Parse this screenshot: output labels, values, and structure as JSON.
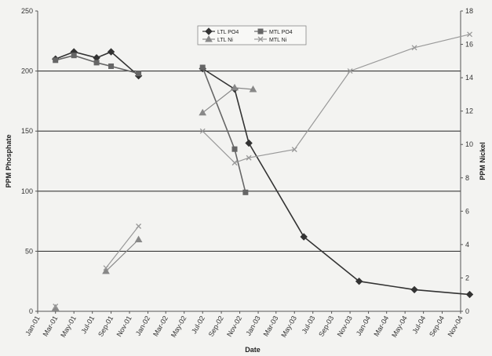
{
  "chart_data": {
    "type": "line",
    "title": "",
    "xlabel": "Date",
    "ylabel": "PPM Phosphate",
    "y2label": "PPM Nickel",
    "ylim": [
      0,
      250
    ],
    "y2lim": [
      0,
      18
    ],
    "yticks": [
      "0",
      "50",
      "100",
      "150",
      "200",
      "250"
    ],
    "y2ticks": [
      "0",
      "2",
      "4",
      "6",
      "8",
      "10",
      "12",
      "14",
      "16",
      "18"
    ],
    "x_ticks": [
      "Jan-01",
      "Mar-01",
      "May-01",
      "Jul-01",
      "Sep-01",
      "Nov-01",
      "Jan-02",
      "Mar-02",
      "May-02",
      "Jul-02",
      "Sep-02",
      "Nov-02",
      "Jan-03",
      "Mar-03",
      "May-03",
      "Jul-03",
      "Sep-03",
      "Nov-03",
      "Jan-04",
      "Mar-04",
      "May-04",
      "Jul-04",
      "Sep-04",
      "Nov-04"
    ],
    "grid": "horizontal at 50, 100, 150, 200",
    "legend_position": "top-center",
    "series": [
      {
        "name": "LTL PO4",
        "axis": "left",
        "color": "#333333",
        "marker": "diamond",
        "segments": [
          [
            [
              "2001-03-01",
              210
            ],
            [
              "2001-05-01",
              216
            ],
            [
              "2001-07-15",
              211
            ],
            [
              "2001-09-01",
              216
            ],
            [
              "2001-12-01",
              196
            ]
          ],
          [
            [
              "2002-07-01",
              202
            ],
            [
              "2002-10-15",
              185
            ],
            [
              "2002-12-01",
              140
            ],
            [
              "2003-06-01",
              62
            ],
            [
              "2003-12-01",
              25
            ],
            [
              "2004-06-01",
              18
            ],
            [
              "2004-12-01",
              14
            ]
          ]
        ]
      },
      {
        "name": "MTL PO4",
        "axis": "left",
        "color": "#666666",
        "marker": "square",
        "segments": [
          [
            [
              "2001-03-01",
              209
            ],
            [
              "2001-05-01",
              213
            ],
            [
              "2001-07-15",
              207
            ],
            [
              "2001-09-01",
              204
            ],
            [
              "2001-12-01",
              198
            ]
          ],
          [
            [
              "2002-07-01",
              203
            ],
            [
              "2002-10-15",
              135
            ],
            [
              "2002-11-20",
              99
            ]
          ]
        ]
      },
      {
        "name": "LTL Ni",
        "axis": "right",
        "color": "#888888",
        "marker": "triangle",
        "segments": [
          [
            [
              "2001-03-01",
              0.2
            ]
          ],
          [
            [
              "2001-08-15",
              2.4
            ],
            [
              "2001-12-01",
              4.3
            ]
          ],
          [
            [
              "2002-07-01",
              11.9
            ],
            [
              "2002-10-15",
              13.4
            ],
            [
              "2002-12-15",
              13.3
            ]
          ]
        ]
      },
      {
        "name": "MTL Ni",
        "axis": "right",
        "color": "#999999",
        "marker": "x",
        "segments": [
          [
            [
              "2001-03-01",
              0.3
            ]
          ],
          [
            [
              "2001-08-15",
              2.6
            ],
            [
              "2001-12-01",
              5.1
            ]
          ],
          [
            [
              "2002-07-01",
              10.8
            ],
            [
              "2002-10-15",
              8.9
            ],
            [
              "2002-12-01",
              9.2
            ],
            [
              "2003-05-01",
              9.7
            ],
            [
              "2003-11-01",
              14.4
            ],
            [
              "2004-06-01",
              15.8
            ],
            [
              "2004-12-01",
              16.6
            ]
          ]
        ]
      }
    ]
  }
}
